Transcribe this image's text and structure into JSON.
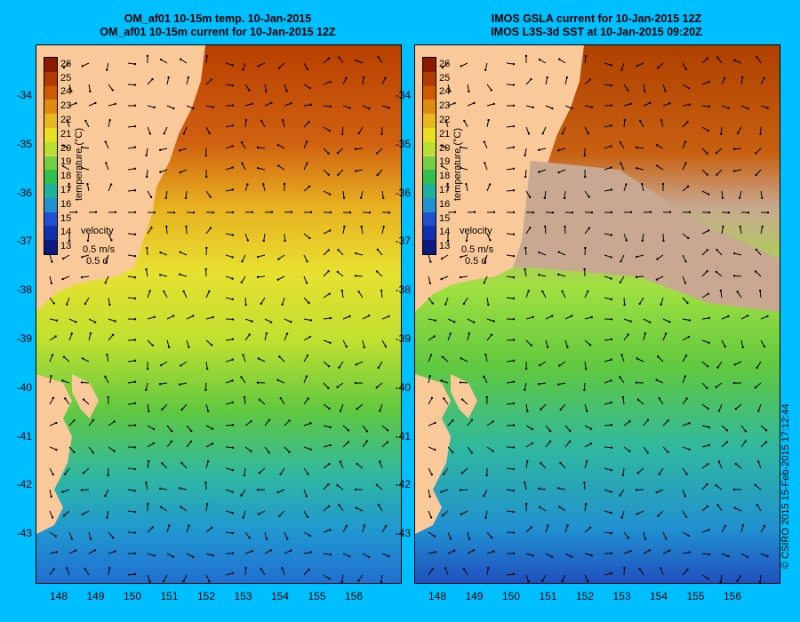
{
  "left_panel": {
    "title_line1": "OM_af01 10-15m temp. 10-Jan-2015",
    "title_line2": "OM_af01 10-15m current for 10-Jan-2015 12Z"
  },
  "right_panel": {
    "title_line1": "IMOS GSLA current for 10-Jan-2015 12Z",
    "title_line2": "IMOS L3S-3d SST at 10-Jan-2015 09:20Z"
  },
  "colorbar": {
    "title": "temperature (°C)",
    "labels": [
      "26",
      "25",
      "24",
      "23",
      "22",
      "21",
      "20",
      "19",
      "18",
      "17",
      "16",
      "15",
      "14",
      "13"
    ],
    "colors": [
      "#8b1a00",
      "#b03a00",
      "#d05a00",
      "#e08a10",
      "#e8b820",
      "#e8e020",
      "#b8e030",
      "#70d040",
      "#30c050",
      "#20b0a0",
      "#2090d0",
      "#2050d0",
      "#1030b0",
      "#0a1a80"
    ]
  },
  "velocity": {
    "label": "velocity",
    "speed": "0.5 m/s",
    "duration": "0.5 d"
  },
  "y_axis_labels": [
    "-34",
    "-35",
    "-36",
    "-37",
    "-38",
    "-39",
    "-40",
    "-41",
    "-42",
    "-43"
  ],
  "x_axis_labels": [
    "148",
    "149",
    "150",
    "151",
    "152",
    "153",
    "154",
    "155",
    "156"
  ],
  "copyright": "© CSIRO 2015   15-Feb-2015 17:12:44",
  "colors": {
    "background": "#00bfff",
    "land": "#f9c99a",
    "cloud": "#c8a890"
  }
}
